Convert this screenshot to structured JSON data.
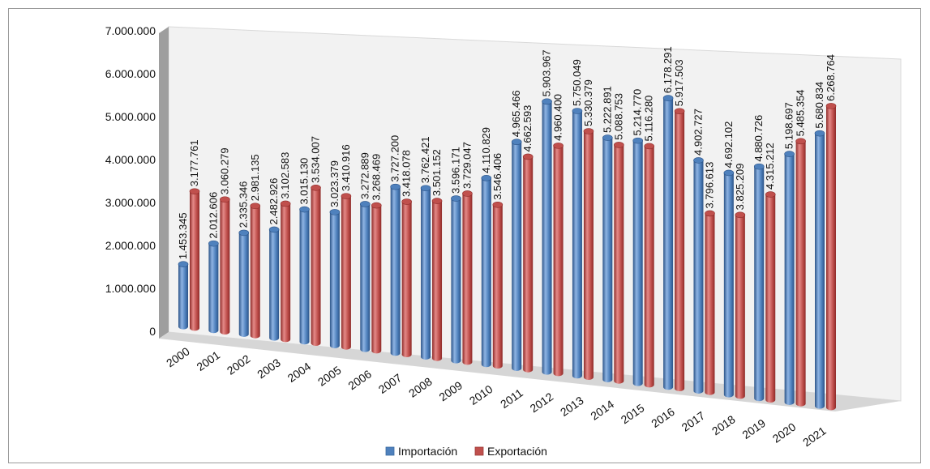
{
  "chart_data": {
    "type": "bar",
    "categories": [
      "2000",
      "2001",
      "2002",
      "2003",
      "2004",
      "2005",
      "2006",
      "2007",
      "2008",
      "2009",
      "2010",
      "2011",
      "2012",
      "2013",
      "2014",
      "2015",
      "2016",
      "2017",
      "2018",
      "2019",
      "2020",
      "2021"
    ],
    "series": [
      {
        "name": "Importación",
        "color": "#4f81bd",
        "values": [
          1453345,
          2012606,
          2335346,
          2482926,
          3015130,
          3023379,
          3272889,
          3727200,
          3762421,
          3596171,
          4110829,
          4965466,
          5903967,
          5750049,
          5222891,
          5214770,
          6178291,
          4902727,
          4692102,
          4880726,
          5198697,
          5680834
        ],
        "labels": [
          "1.453.345",
          "2.012.606",
          "2.335.346",
          "2.482.926",
          "3.015.130",
          "3.023.379",
          "3.272.889",
          "3.727.200",
          "3.762.421",
          "3.596.171",
          "4.110.829",
          "4.965.466",
          "5.903.967",
          "5.750.049",
          "5.222.891",
          "5.214.770",
          "6.178.291",
          "4.902.727",
          "4.692.102",
          "4.880.726",
          "5.198.697",
          "5.680.834"
        ]
      },
      {
        "name": "Exportación",
        "color": "#c0504d",
        "values": [
          3177761,
          3060279,
          2981135,
          3102583,
          3534007,
          3410916,
          3268469,
          3418078,
          3501152,
          3729047,
          3546406,
          4662593,
          4960400,
          5330379,
          5088753,
          5116280,
          5917503,
          3796613,
          3825209,
          4315212,
          5485354,
          6268764
        ],
        "labels": [
          "3.177.761",
          "3.060.279",
          "2.981.135",
          "3.102.583",
          "3.534.007",
          "3.410.916",
          "3.268.469",
          "3.418.078",
          "3.501.152",
          "3.729.047",
          "3.546.406",
          "4.662.593",
          "4.960.400",
          "5.330.379",
          "5.088.753",
          "5.116.280",
          "5.917.503",
          "3.796.613",
          "3.825.209",
          "4.315.212",
          "5.485.354",
          "6.268.764"
        ]
      }
    ],
    "y_ticks": [
      0,
      1000000,
      2000000,
      3000000,
      4000000,
      5000000,
      6000000,
      7000000
    ],
    "y_tick_labels": [
      "0",
      "1.000.000",
      "2.000.000",
      "3.000.000",
      "4.000.000",
      "5.000.000",
      "6.000.000",
      "7.000.000"
    ],
    "ylim": [
      0,
      7000000
    ],
    "title": "",
    "xlabel": "",
    "ylabel": "",
    "grid": false,
    "legend_position": "bottom",
    "style": "3d-cylinder"
  }
}
